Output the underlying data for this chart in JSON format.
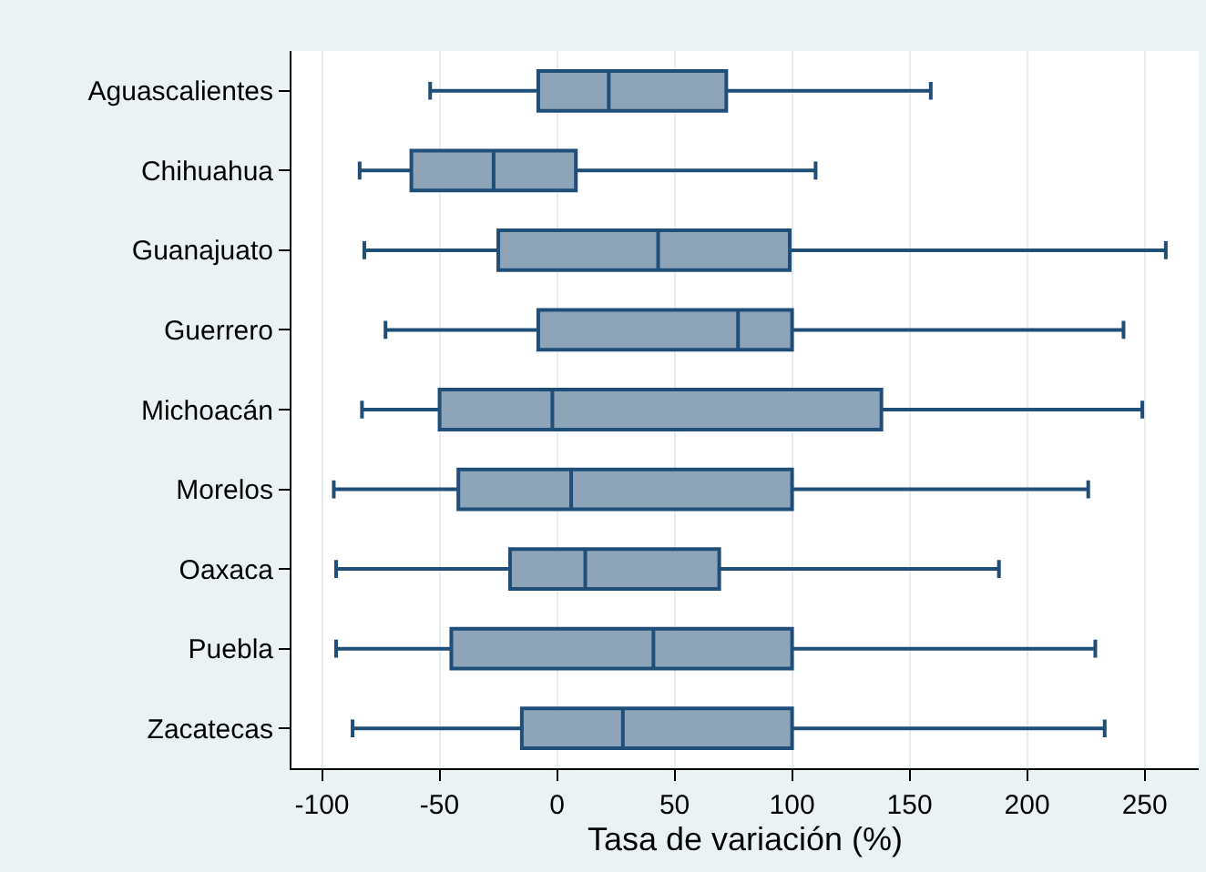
{
  "chart_data": {
    "type": "box",
    "orientation": "horizontal",
    "xlabel": "Tasa de variación (%)",
    "categories": [
      "Aguascalientes",
      "Chihuahua",
      "Guanajuato",
      "Guerrero",
      "Michoacán",
      "Morelos",
      "Oaxaca",
      "Puebla",
      "Zacatecas"
    ],
    "boxes": [
      {
        "low": -54,
        "q1": -8,
        "median": 22,
        "q3": 72,
        "high": 159
      },
      {
        "low": -84,
        "q1": -62,
        "median": -27,
        "q3": 8,
        "high": 110
      },
      {
        "low": -82,
        "q1": -25,
        "median": 43,
        "q3": 99,
        "high": 259
      },
      {
        "low": -73,
        "q1": -8,
        "median": 77,
        "q3": 100,
        "high": 241
      },
      {
        "low": -83,
        "q1": -50,
        "median": -2,
        "q3": 138,
        "high": 249
      },
      {
        "low": -95,
        "q1": -42,
        "median": 6,
        "q3": 100,
        "high": 226
      },
      {
        "low": -94,
        "q1": -20,
        "median": 12,
        "q3": 69,
        "high": 188
      },
      {
        "low": -94,
        "q1": -45,
        "median": 41,
        "q3": 100,
        "high": 229
      },
      {
        "low": -87,
        "q1": -15,
        "median": 28,
        "q3": 100,
        "high": 233
      }
    ],
    "color": "#8ea4b8",
    "xlim": [
      -113,
      273
    ],
    "xticks": [
      -100,
      -50,
      0,
      50,
      100,
      150,
      200,
      250
    ],
    "grid": "x",
    "legend": false
  }
}
